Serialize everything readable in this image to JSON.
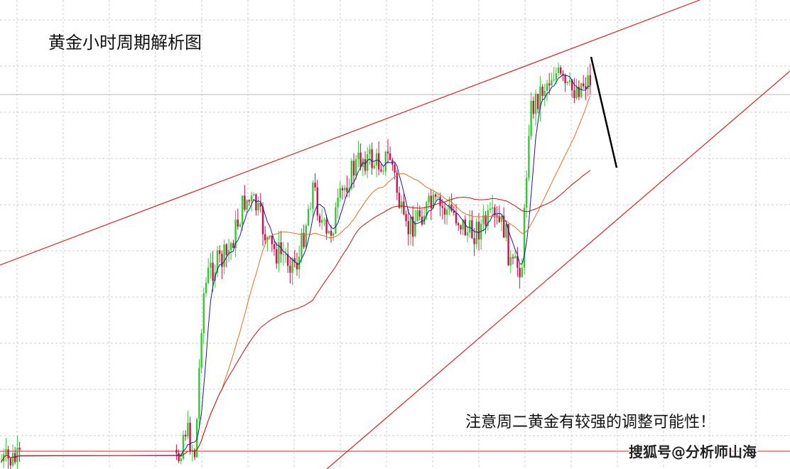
{
  "title": "黄金小时周期解析图",
  "annotation": "注意周二黄金有较强的调整可能性！",
  "watermark": "搜狐号@分析师山海"
}
